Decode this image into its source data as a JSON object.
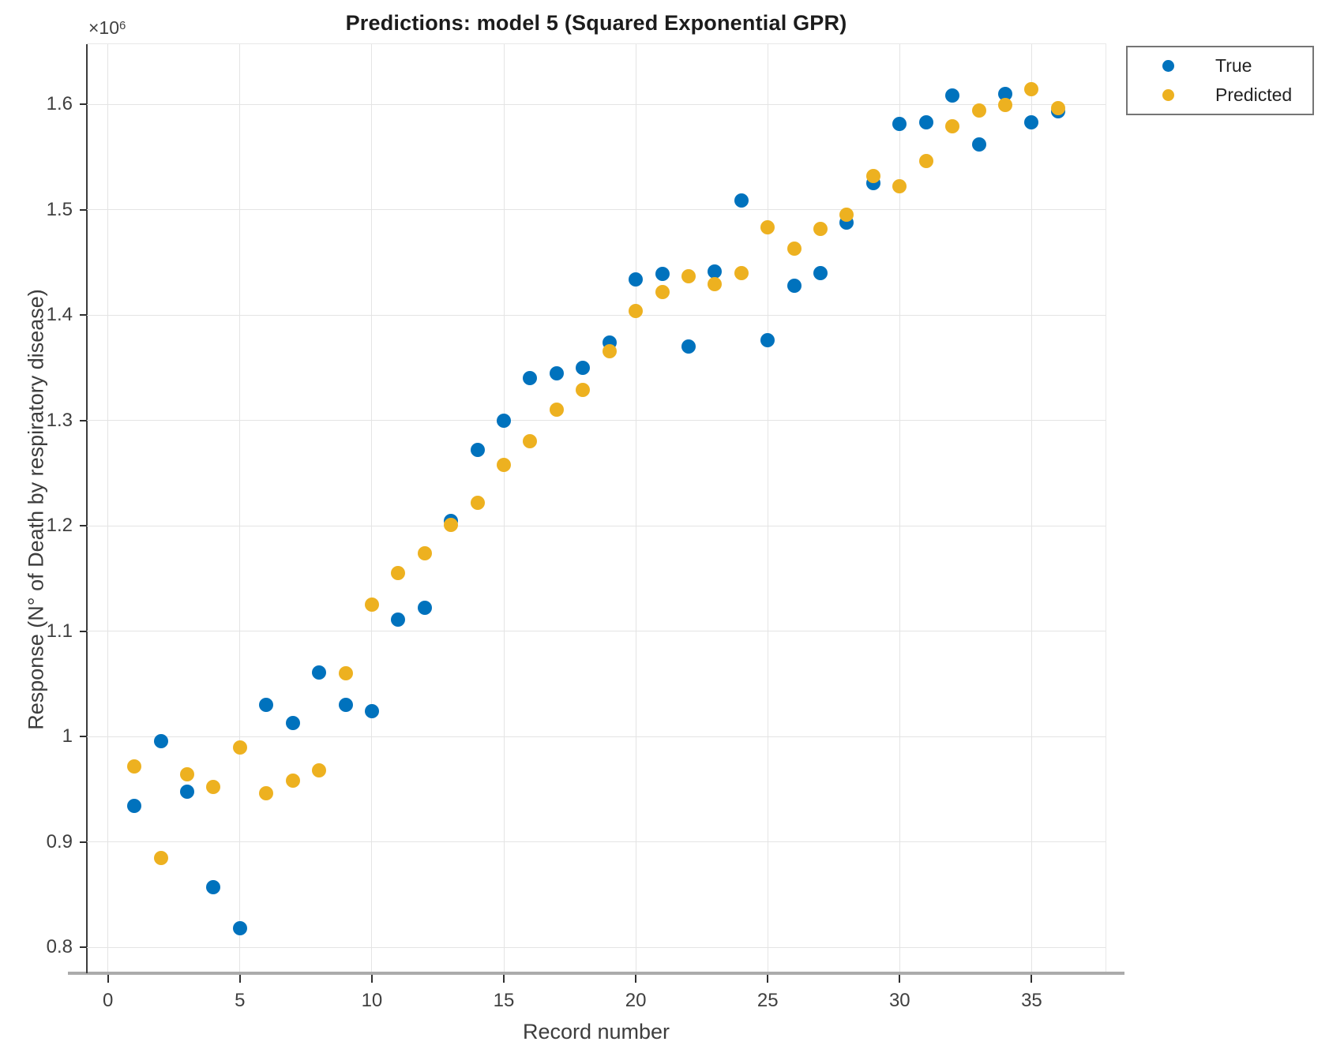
{
  "figure": {
    "title": "Predictions: model 5 (Squared Exponential GPR)",
    "y_exponent_prefix": "×10",
    "y_exponent_power": "6"
  },
  "legend": {
    "entries": [
      {
        "label": "True",
        "color": "#0072BD"
      },
      {
        "label": "Predicted",
        "color": "#EDB120"
      }
    ]
  },
  "chart_data": {
    "type": "scatter",
    "title": "Predictions: model 5 (Squared Exponential GPR)",
    "xlabel": "Record number",
    "ylabel": "Response (N° of Death by respiratory disease)",
    "y_units_multiplier_label": "×10^6",
    "grid": true,
    "legend_position": "outside-top-right",
    "xlim": [
      -0.8,
      37.8
    ],
    "ylim": [
      0.777,
      1.657
    ],
    "x_ticks": [
      {
        "value": 0,
        "label": "0"
      },
      {
        "value": 5,
        "label": "5"
      },
      {
        "value": 10,
        "label": "10"
      },
      {
        "value": 15,
        "label": "15"
      },
      {
        "value": 20,
        "label": "20"
      },
      {
        "value": 25,
        "label": "25"
      },
      {
        "value": 30,
        "label": "30"
      },
      {
        "value": 35,
        "label": "35"
      }
    ],
    "y_ticks": [
      {
        "value": 0.8,
        "label": "0.8"
      },
      {
        "value": 0.9,
        "label": "0.9"
      },
      {
        "value": 1.0,
        "label": "1"
      },
      {
        "value": 1.1,
        "label": "1.1"
      },
      {
        "value": 1.2,
        "label": "1.2"
      },
      {
        "value": 1.3,
        "label": "1.3"
      },
      {
        "value": 1.4,
        "label": "1.4"
      },
      {
        "value": 1.5,
        "label": "1.5"
      },
      {
        "value": 1.6,
        "label": "1.6"
      }
    ],
    "x": [
      1,
      2,
      3,
      4,
      5,
      6,
      7,
      8,
      9,
      10,
      11,
      12,
      13,
      14,
      15,
      16,
      17,
      18,
      19,
      20,
      21,
      22,
      23,
      24,
      25,
      26,
      27,
      28,
      29,
      30,
      31,
      32,
      33,
      34,
      35,
      36
    ],
    "series": [
      {
        "name": "True",
        "color": "#0072BD",
        "values": [
          0.934,
          0.996,
          0.948,
          0.857,
          0.818,
          1.03,
          1.013,
          1.061,
          1.03,
          1.024,
          1.111,
          1.122,
          1.205,
          1.272,
          1.3,
          1.34,
          1.345,
          1.35,
          1.374,
          1.434,
          1.439,
          1.37,
          1.441,
          1.509,
          1.376,
          1.428,
          1.44,
          1.488,
          1.525,
          1.581,
          1.583,
          1.608,
          1.562,
          1.61,
          1.583,
          1.593
        ]
      },
      {
        "name": "Predicted",
        "color": "#EDB120",
        "values": [
          0.972,
          0.885,
          0.964,
          0.952,
          0.99,
          0.946,
          0.958,
          0.968,
          1.06,
          1.125,
          1.155,
          1.174,
          1.201,
          1.222,
          1.258,
          1.28,
          1.31,
          1.329,
          1.366,
          1.404,
          1.422,
          1.437,
          1.429,
          1.44,
          1.483,
          1.463,
          1.482,
          1.495,
          1.532,
          1.522,
          1.546,
          1.579,
          1.594,
          1.599,
          1.614,
          1.596
        ]
      }
    ]
  }
}
